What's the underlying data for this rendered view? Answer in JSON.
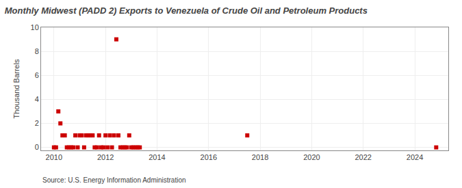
{
  "chart_data": {
    "type": "scatter",
    "title": "Monthly Midwest (PADD 2) Exports to Venezuela of Crude Oil and Petroleum Products",
    "ylabel": "Thousand Barrels",
    "annotations": [
      "Source: U.S. Energy Information Administration"
    ],
    "x": [
      2010.0,
      2010.08,
      2010.17,
      2010.25,
      2010.33,
      2010.42,
      2010.5,
      2010.58,
      2010.67,
      2010.75,
      2010.83,
      2010.92,
      2011.0,
      2011.08,
      2011.17,
      2011.25,
      2011.33,
      2011.42,
      2011.5,
      2011.58,
      2011.67,
      2011.75,
      2011.83,
      2011.92,
      2012.0,
      2012.08,
      2012.17,
      2012.25,
      2012.33,
      2012.42,
      2012.5,
      2012.58,
      2012.67,
      2012.75,
      2012.83,
      2012.92,
      2013.0,
      2013.08,
      2013.17,
      2013.25,
      2013.33,
      2017.5,
      2024.83
    ],
    "values": [
      0.0,
      0.0,
      3.0,
      2.0,
      1.0,
      1.0,
      0.0,
      0.0,
      0.0,
      0.0,
      1.0,
      0.0,
      1.0,
      1.0,
      0.0,
      1.0,
      1.0,
      1.0,
      1.0,
      0.0,
      0.0,
      1.0,
      0.0,
      0.0,
      1.0,
      0.0,
      1.0,
      0.0,
      1.0,
      9.0,
      1.0,
      0.0,
      0.0,
      0.0,
      0.0,
      1.0,
      0.0,
      0.0,
      0.0,
      0.0,
      0.0,
      1.0,
      0.0
    ],
    "color": "#cc0000",
    "marker": "square",
    "xlim": [
      2009.5,
      2025.3
    ],
    "ylim": [
      -0.25,
      10
    ],
    "xticks": [
      2010,
      2012,
      2014,
      2016,
      2018,
      2020,
      2022,
      2024
    ],
    "yticks": [
      0,
      2,
      4,
      6,
      8,
      10
    ],
    "grid": true
  }
}
